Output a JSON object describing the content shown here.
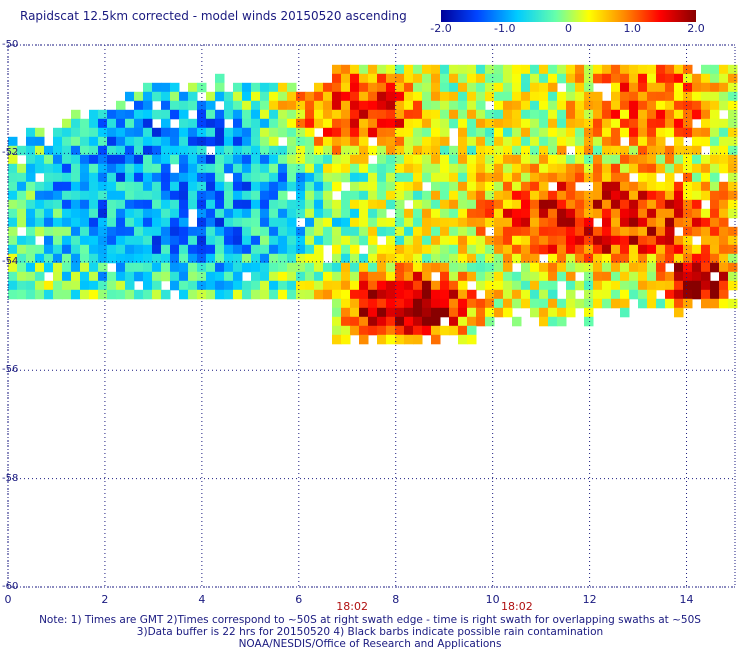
{
  "title": "Rapidscat 12.5km corrected - model winds 20150520 ascending",
  "colorbar": {
    "min": -2.0,
    "max": 2.0,
    "ticks": [
      {
        "value": -2.0,
        "label": "-2.0"
      },
      {
        "value": -1.0,
        "label": "-1.0"
      },
      {
        "value": 0,
        "label": "0"
      },
      {
        "value": 1.0,
        "label": "1.0"
      },
      {
        "value": 2.0,
        "label": "2.0"
      }
    ],
    "colors": [
      "#000099",
      "#0044ff",
      "#00ccff",
      "#66ffaa",
      "#ffff00",
      "#ff8800",
      "#ff0000",
      "#880000"
    ]
  },
  "chart_data": {
    "type": "heatmap",
    "title": "Rapidscat 12.5km corrected - model winds 20150520 ascending",
    "x_ticks": [
      "0",
      "2",
      "4",
      "6",
      "8",
      "10",
      "12",
      "14"
    ],
    "y_ticks": [
      "-50",
      "-52",
      "-54",
      "-56",
      "-58",
      "-60"
    ],
    "xlim": [
      0,
      15
    ],
    "ylim": [
      -60,
      -50
    ],
    "time_labels": [
      {
        "x": 7.1,
        "label": "18:02"
      },
      {
        "x": 10.5,
        "label": "18:02"
      }
    ],
    "value_range": [
      -2.0,
      2.0
    ],
    "regions": [
      {
        "lon": [
          0,
          6.5
        ],
        "lat": [
          -54.6,
          -50.5
        ],
        "mean": -1.0
      },
      {
        "lon": [
          5.5,
          8.5
        ],
        "lat": [
          -52.0,
          -50.4
        ],
        "mean": 1.3
      },
      {
        "lon": [
          11.5,
          14.8
        ],
        "lat": [
          -51.8,
          -50.2
        ],
        "mean": 0.9
      },
      {
        "lon": [
          9.5,
          14.8
        ],
        "lat": [
          -54.0,
          -52.2
        ],
        "mean": 1.3
      },
      {
        "lon": [
          6.8,
          9.5
        ],
        "lat": [
          -55.3,
          -54.1
        ],
        "mean": 1.8
      },
      {
        "lon": [
          13.5,
          14.8
        ],
        "lat": [
          -54.8,
          -53.8
        ],
        "mean": 1.8
      }
    ],
    "grid": true
  },
  "notes": {
    "line1": "Note: 1) Times are GMT 2)Times correspond to ~50S at right swath edge - time is right swath for overlapping swaths at ~50S",
    "line2": "3)Data buffer is 22 hrs for 20150520 4) Black barbs indicate possible rain contamination",
    "line3": "NOAA/NESDIS/Office of Research and Applications"
  }
}
